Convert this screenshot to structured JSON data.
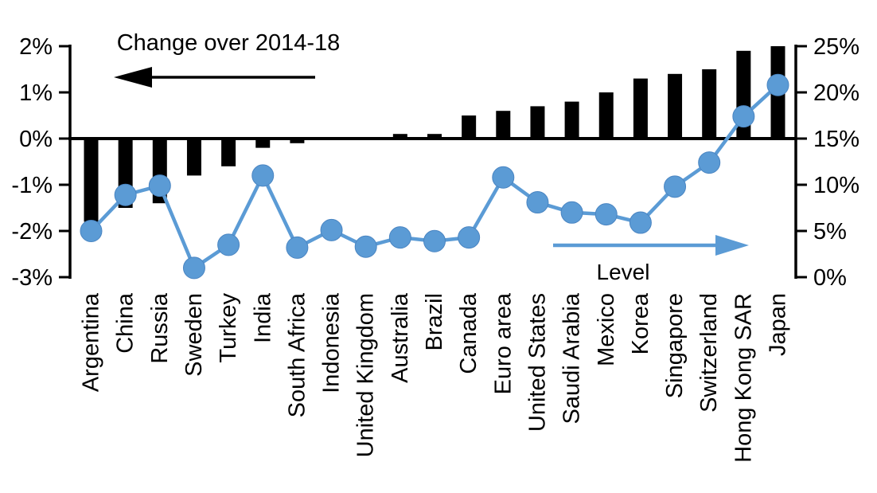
{
  "chart_data": {
    "type": "combo-bar-line-dual-axis",
    "title": "Change over 2014-18",
    "background": "#ffffff",
    "grid": false,
    "categories": [
      "Argentina",
      "China",
      "Russia",
      "Sweden",
      "Turkey",
      "India",
      "South Africa",
      "Indonesia",
      "United Kingdom",
      "Australia",
      "Brazil",
      "Canada",
      "Euro area",
      "United States",
      "Saudi Arabia",
      "Mexico",
      "Korea",
      "Singapore",
      "Switzerland",
      "Hong Kong SAR",
      "Japan"
    ],
    "series": [
      {
        "name": "Change over 2014-18",
        "type": "bar",
        "axis": "left",
        "color": "#000000",
        "values": [
          -1.8,
          -1.5,
          -1.4,
          -0.8,
          -0.6,
          -0.2,
          -0.1,
          0.0,
          0.0,
          0.1,
          0.1,
          0.5,
          0.6,
          0.7,
          0.8,
          1.0,
          1.3,
          1.4,
          1.5,
          1.9,
          2.0
        ]
      },
      {
        "name": "Level",
        "type": "line",
        "axis": "right",
        "color": "#5B9BD5",
        "values": [
          5.0,
          8.9,
          9.9,
          1.0,
          3.5,
          11.0,
          3.2,
          5.1,
          3.3,
          4.3,
          3.9,
          4.3,
          10.8,
          8.1,
          7.0,
          6.8,
          5.9,
          9.8,
          12.4,
          17.4,
          20.8
        ]
      }
    ],
    "left_axis": {
      "min": -3,
      "max": 2,
      "tick_values": [
        2,
        1,
        0,
        -1,
        -2,
        -3
      ],
      "tick_labels": [
        "2%",
        "1%",
        "0%",
        "-1%",
        "-2%",
        "-3%"
      ]
    },
    "right_axis": {
      "min": 0,
      "max": 25,
      "tick_values": [
        25,
        20,
        15,
        10,
        5,
        0
      ],
      "tick_labels": [
        "25%",
        "20%",
        "15%",
        "10%",
        "5%",
        "0%"
      ]
    },
    "annotations": {
      "bar_series_label": {
        "text": "Change over 2014-18",
        "arrow_direction": "left",
        "arrow_color": "#000000"
      },
      "line_series_label": {
        "text": "Level",
        "arrow_direction": "right",
        "arrow_color": "#5B9BD5"
      }
    }
  }
}
